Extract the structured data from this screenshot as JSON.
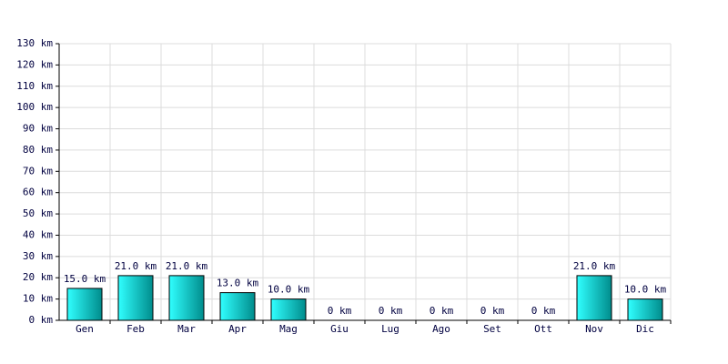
{
  "chart_data": {
    "type": "bar",
    "categories": [
      "Gen",
      "Feb",
      "Mar",
      "Apr",
      "Mag",
      "Giu",
      "Lug",
      "Ago",
      "Set",
      "Ott",
      "Nov",
      "Dic"
    ],
    "values": [
      15,
      21,
      21,
      13,
      10,
      0,
      0,
      0,
      0,
      0,
      21,
      10
    ],
    "value_labels": [
      "15.0 km",
      "21.0 km",
      "21.0 km",
      "13.0 km",
      "10.0 km",
      "0 km",
      "0 km",
      "0 km",
      "0 km",
      "0 km",
      "21.0 km",
      "10.0 km"
    ],
    "color": "#00c8c8",
    "ylim": [
      0,
      130
    ],
    "yticks": [
      {
        "value": 0,
        "label": "0 km"
      },
      {
        "value": 10,
        "label": "10 km"
      },
      {
        "value": 20,
        "label": "20 km"
      },
      {
        "value": 30,
        "label": "30 km"
      },
      {
        "value": 40,
        "label": "40 km"
      },
      {
        "value": 50,
        "label": "50 km"
      },
      {
        "value": 60,
        "label": "60 km"
      },
      {
        "value": 70,
        "label": "70 km"
      },
      {
        "value": 80,
        "label": "80 km"
      },
      {
        "value": 90,
        "label": "90 km"
      },
      {
        "value": 100,
        "label": "100 km"
      },
      {
        "value": 110,
        "label": "110 km"
      },
      {
        "value": 120,
        "label": "120 km"
      },
      {
        "value": 130,
        "label": "130 km"
      }
    ],
    "grid": true
  }
}
